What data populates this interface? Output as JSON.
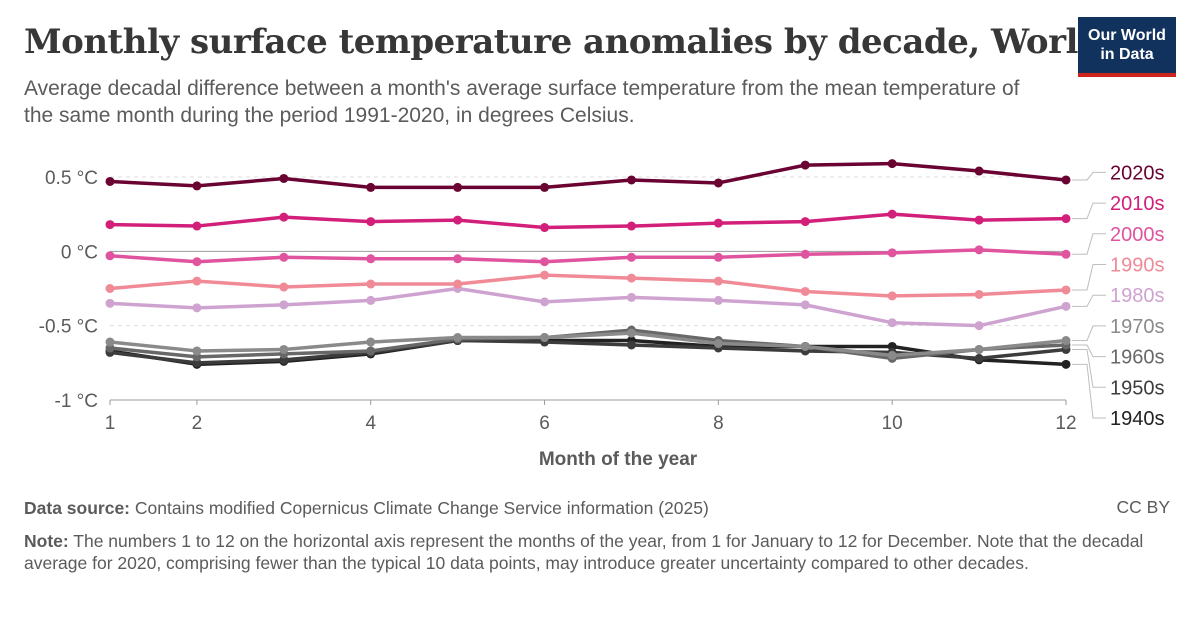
{
  "header": {
    "title": "Monthly surface temperature anomalies by decade, World",
    "subtitle": "Average decadal difference between a month's average surface temperature from the mean temperature of the same month during the period 1991-2020, in degrees Celsius.",
    "logo_line1": "Our World",
    "logo_line2": "in Data"
  },
  "footer": {
    "source_label": "Data source:",
    "source_text": "Contains modified Copernicus Climate Change Service information (2025)",
    "license": "CC BY",
    "note_label": "Note:",
    "note_text": "The numbers 1 to 12 on the horizontal axis represent the months of the year, from 1 for January to 12 for December. Note that the decadal average for 2020, comprising fewer than the typical 10 data points, may introduce greater uncertainty compared to other decades."
  },
  "colors": {
    "accent": "#12325e",
    "logo_stripe": "#ce261e",
    "grid": "#dddddd",
    "zero_line": "#9b9b9b"
  },
  "chart_data": {
    "type": "line",
    "xlabel": "Month of the year",
    "ylabel": "",
    "x": [
      1,
      2,
      3,
      4,
      5,
      6,
      7,
      8,
      9,
      10,
      11,
      12
    ],
    "x_ticks": [
      1,
      2,
      4,
      6,
      8,
      10,
      12
    ],
    "x_tick_labels": [
      "1",
      "2",
      "4",
      "6",
      "8",
      "10",
      "12"
    ],
    "ylim": [
      -1,
      0.5
    ],
    "y_ticks": [
      -1,
      -0.5,
      0,
      0.5
    ],
    "y_tick_labels": [
      "-1 °C",
      "-0.5 °C",
      "0 °C",
      "0.5 °C"
    ],
    "grid": "horizontal dashed",
    "legend": "right, labels at line ends",
    "series": [
      {
        "name": "1940s",
        "color": "#222222",
        "values": [
          -0.67,
          -0.76,
          -0.74,
          -0.69,
          -0.6,
          -0.6,
          -0.6,
          -0.64,
          -0.64,
          -0.64,
          -0.73,
          -0.76
        ]
      },
      {
        "name": "1950s",
        "color": "#3c3c3c",
        "values": [
          -0.68,
          -0.75,
          -0.73,
          -0.68,
          -0.6,
          -0.61,
          -0.63,
          -0.65,
          -0.67,
          -0.68,
          -0.72,
          -0.66
        ]
      },
      {
        "name": "1960s",
        "color": "#686868",
        "values": [
          -0.65,
          -0.71,
          -0.69,
          -0.67,
          -0.59,
          -0.58,
          -0.53,
          -0.6,
          -0.64,
          -0.72,
          -0.66,
          -0.63
        ]
      },
      {
        "name": "1970s",
        "color": "#8a8a8a",
        "values": [
          -0.61,
          -0.67,
          -0.66,
          -0.61,
          -0.58,
          -0.58,
          -0.55,
          -0.62,
          -0.64,
          -0.7,
          -0.66,
          -0.6
        ]
      },
      {
        "name": "1980s",
        "color": "#cfa3d0",
        "values": [
          -0.35,
          -0.38,
          -0.36,
          -0.33,
          -0.25,
          -0.34,
          -0.31,
          -0.33,
          -0.36,
          -0.48,
          -0.5,
          -0.37
        ]
      },
      {
        "name": "1990s",
        "color": "#ef8a96",
        "values": [
          -0.25,
          -0.2,
          -0.24,
          -0.22,
          -0.22,
          -0.16,
          -0.18,
          -0.2,
          -0.27,
          -0.3,
          -0.29,
          -0.26
        ]
      },
      {
        "name": "2000s",
        "color": "#e0539f",
        "values": [
          -0.03,
          -0.07,
          -0.04,
          -0.05,
          -0.05,
          -0.07,
          -0.04,
          -0.04,
          -0.02,
          -0.01,
          0.01,
          -0.02
        ]
      },
      {
        "name": "2010s",
        "color": "#d21f7a",
        "values": [
          0.18,
          0.17,
          0.23,
          0.2,
          0.21,
          0.16,
          0.17,
          0.19,
          0.2,
          0.25,
          0.21,
          0.22
        ]
      },
      {
        "name": "2020s",
        "color": "#6a0331",
        "values": [
          0.47,
          0.44,
          0.49,
          0.43,
          0.43,
          0.43,
          0.48,
          0.46,
          0.58,
          0.59,
          0.54,
          0.48
        ]
      }
    ]
  }
}
